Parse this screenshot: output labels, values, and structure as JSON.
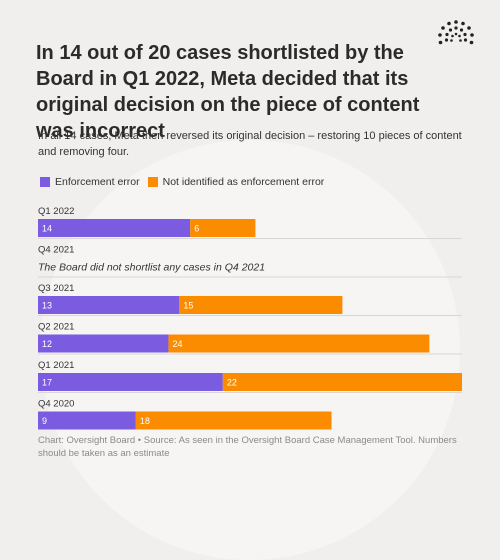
{
  "title": "In 14 out of 20 cases shortlisted by the Board in Q1 2022, Meta decided that its original decision on the piece of content was incorrect",
  "subtitle": "In all 14 cases, Meta then reversed its original decision – restoring 10 pieces of content and removing four.",
  "source": "Chart: Oversight Board • Source: As seen in the Oversight Board Case Management Tool. Numbers should be taken as an estimate",
  "logo_icon": "oversight-board-logo-icon",
  "colors": {
    "enforcement_error": "#7b5ce1",
    "not_enforcement_error": "#fb8c00",
    "gridline": "#d9d7d4",
    "text": "#2b2b2b"
  },
  "legend": [
    {
      "label": "Enforcement error",
      "color": "#7b5ce1"
    },
    {
      "label": "Not identified as enforcement error",
      "color": "#fb8c00"
    }
  ],
  "chart_data": {
    "type": "bar",
    "orientation": "horizontal",
    "stacked": true,
    "categories": [
      "Q1 2022",
      "Q4 2021",
      "Q3 2021",
      "Q2 2021",
      "Q1 2021",
      "Q4 2020"
    ],
    "series": [
      {
        "name": "Enforcement error",
        "values": [
          14,
          null,
          13,
          12,
          17,
          9
        ]
      },
      {
        "name": "Not identified as enforcement error",
        "values": [
          6,
          null,
          15,
          24,
          22,
          18
        ]
      }
    ],
    "annotations": [
      {
        "category": "Q4 2021",
        "text": "The Board did not shortlist any cases in Q4 2021"
      }
    ],
    "xlim": [
      0,
      39
    ],
    "grid": true,
    "legend_position": "top-left"
  }
}
